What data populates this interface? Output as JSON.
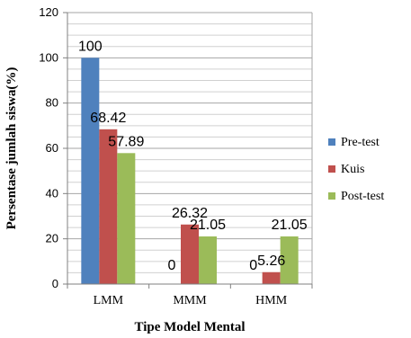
{
  "chart_data": {
    "type": "bar",
    "categories": [
      "LMM",
      "MMM",
      "HMM"
    ],
    "series": [
      {
        "name": "Pre-test",
        "values": [
          100,
          0,
          0
        ],
        "labels": [
          "100",
          "0",
          "0"
        ],
        "color": "#4F81BD"
      },
      {
        "name": "Kuis",
        "values": [
          68.42,
          26.32,
          5.26
        ],
        "labels": [
          "68.42",
          "26.32",
          "5.26"
        ],
        "color": "#C0504D"
      },
      {
        "name": "Post-test",
        "values": [
          57.89,
          21.05,
          21.05
        ],
        "labels": [
          "57.89",
          "21.05",
          "21.05"
        ],
        "color": "#9BBB59"
      }
    ],
    "xlabel": "Tipe Model Mental",
    "ylabel": "Persentase jumlah siswa(%)",
    "ylim": [
      0,
      120
    ],
    "yticks": [
      "0",
      "20",
      "40",
      "60",
      "80",
      "100",
      "120"
    ],
    "grid": true,
    "legend_position": "right"
  }
}
